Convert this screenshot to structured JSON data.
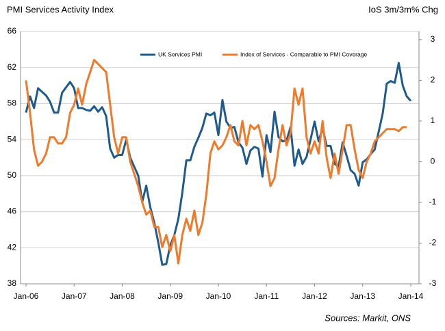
{
  "chart_data": {
    "type": "line",
    "title": "PMI Services Activity Index",
    "y2_title": "IoS 3m/3m% Chg",
    "source": "Sources: Markit, ONS",
    "categories": [
      "Jan-06",
      null,
      null,
      null,
      null,
      null,
      null,
      null,
      null,
      null,
      null,
      null,
      "Jan-07",
      null,
      null,
      null,
      null,
      null,
      null,
      null,
      null,
      null,
      null,
      null,
      "Jan-08",
      null,
      null,
      null,
      null,
      null,
      null,
      null,
      null,
      null,
      null,
      null,
      "Jan-09",
      null,
      null,
      null,
      null,
      null,
      null,
      null,
      null,
      null,
      null,
      null,
      "Jan-10",
      null,
      null,
      null,
      null,
      null,
      null,
      null,
      null,
      null,
      null,
      null,
      "Jan-11",
      null,
      null,
      null,
      null,
      null,
      null,
      null,
      null,
      null,
      null,
      null,
      "Jan-12",
      null,
      null,
      null,
      null,
      null,
      null,
      null,
      null,
      null,
      null,
      null,
      "Jan-13",
      null,
      null,
      null,
      null,
      null,
      null,
      null,
      null,
      null,
      null,
      null,
      "Jan-14"
    ],
    "series": [
      {
        "name": "UK Services PMI",
        "color": "#1f5a8c",
        "values": [
          57,
          58.8,
          57.5,
          59.7,
          59.3,
          58.9,
          58.2,
          57,
          57,
          59.2,
          59.8,
          60.4,
          59.7,
          57.5,
          57.5,
          57.3,
          57.2,
          57.7,
          57.1,
          57.6,
          56.6,
          53,
          52,
          52.3,
          52.3,
          54,
          52,
          51,
          50,
          47.1,
          48.9,
          46.5,
          44.8,
          42.6,
          40.1,
          40.2,
          42.3,
          43.4,
          45.2,
          48.1,
          51.7,
          51.7,
          53.2,
          54.2,
          55.3,
          56.9,
          56.7,
          57,
          54.5,
          58.4,
          56,
          55.3,
          55.4,
          53.7,
          53.1,
          51.3,
          52.8,
          53.2,
          53,
          49.9,
          54.5,
          52.6,
          57.1,
          54.3,
          53.8,
          53.9,
          55.4,
          51.1,
          52.9,
          51.3,
          52.1,
          54,
          56,
          53.8,
          55.3,
          53.3,
          53.3,
          51.3,
          51,
          53.7,
          52.2,
          50.6,
          50.2,
          48.9,
          51.5,
          51.8,
          52.4,
          52.9,
          54.9,
          56.9,
          60.2,
          60.5,
          60.3,
          62.5,
          60,
          58.8,
          58.3
        ]
      },
      {
        "name": "Index of Services - Comparable to PMI Coverage",
        "color": "#f07a2a",
        "axis": "y2",
        "values": [
          2.0,
          1.2,
          0.3,
          -0.1,
          0,
          0.2,
          0.6,
          0.6,
          0.45,
          0.45,
          0.6,
          1.2,
          1.4,
          1.8,
          1.4,
          1.9,
          2.2,
          2.5,
          2.4,
          2.3,
          2.2,
          1.4,
          0.6,
          0.2,
          0.6,
          0.6,
          0,
          -0.3,
          -0.6,
          -1.0,
          -1.3,
          -1.2,
          -1.6,
          -1.6,
          -2.1,
          -1.8,
          -2.2,
          -1.8,
          -2.5,
          -1.8,
          -1.4,
          -1.7,
          -1.2,
          -1.8,
          -1.5,
          -0.8,
          0.2,
          0.5,
          0.3,
          0.4,
          0.6,
          0.9,
          0.5,
          0.4,
          1.0,
          0.4,
          0.9,
          0.8,
          0.9,
          0.5,
          0,
          -0.6,
          -0.4,
          0.3,
          0.9,
          0.4,
          0.7,
          1.8,
          1.4,
          1.8,
          0.6,
          0.2,
          0.5,
          0.2,
          1.0,
          0.1,
          -0.4,
          0.2,
          -0.3,
          0.3,
          0.9,
          0.9,
          0.3,
          -0.2,
          -0.4,
          0,
          0.2,
          0.5,
          0.6,
          0.7,
          0.8,
          0.8,
          0.8,
          0.75,
          0.85,
          0.85,
          null
        ]
      }
    ],
    "ylim": [
      38,
      66
    ],
    "yticks": [
      38,
      42,
      46,
      50,
      54,
      58,
      62,
      66
    ],
    "y2lim": [
      -3,
      3.2
    ],
    "y2ticks": [
      -3,
      -2,
      -1,
      0,
      1,
      2,
      3
    ],
    "grid": true
  }
}
